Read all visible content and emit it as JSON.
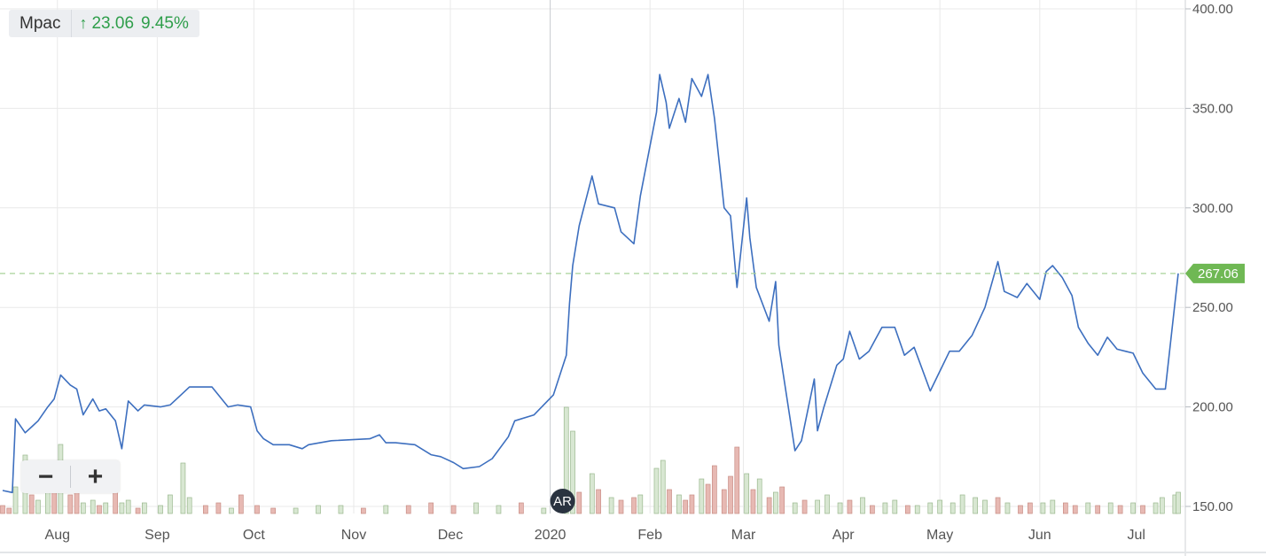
{
  "legend": {
    "name": "Mpac",
    "arrow_icon": "arrow-up-icon",
    "change": "23.06",
    "percent": "9.45%",
    "change_color": "#2e9e4a"
  },
  "zoom": {
    "minus_label": "−",
    "plus_label": "+"
  },
  "current_price": {
    "label": "267.06",
    "value": 267.06,
    "color": "#6fb854"
  },
  "event_marker": {
    "label": "AR",
    "date": "2020-01-01"
  },
  "colors": {
    "line": "#3d6fbf",
    "volume_up": "#d8e7d2",
    "volume_up_stroke": "#9ab88e",
    "volume_down": "#e7b9b3",
    "volume_down_stroke": "#c98e86",
    "grid": "#e9e9e9"
  },
  "chart_data": {
    "type": "line",
    "title": "",
    "xlabel": "",
    "ylabel": "",
    "ylim": [
      145,
      405
    ],
    "yticks": [
      150,
      200,
      250,
      300,
      350,
      400
    ],
    "ytick_labels": [
      "150.00",
      "200.00",
      "250.00",
      "300.00",
      "350.00",
      "400.00"
    ],
    "xticks": [
      {
        "label": "Aug",
        "date": "2019-08-01"
      },
      {
        "label": "Sep",
        "date": "2019-09-01"
      },
      {
        "label": "Oct",
        "date": "2019-10-01"
      },
      {
        "label": "Nov",
        "date": "2019-11-01"
      },
      {
        "label": "Dec",
        "date": "2019-12-01"
      },
      {
        "label": "2020",
        "date": "2020-01-01"
      },
      {
        "label": "Feb",
        "date": "2020-02-01"
      },
      {
        "label": "Mar",
        "date": "2020-03-01"
      },
      {
        "label": "Apr",
        "date": "2020-04-01"
      },
      {
        "label": "May",
        "date": "2020-05-01"
      },
      {
        "label": "Jun",
        "date": "2020-06-01"
      },
      {
        "label": "Jul",
        "date": "2020-07-01"
      }
    ],
    "grid": true,
    "series": [
      {
        "values": [
          [
            "2019-07-15",
            158
          ],
          [
            "2019-07-18",
            157
          ],
          [
            "2019-07-19",
            194
          ],
          [
            "2019-07-22",
            187
          ],
          [
            "2019-07-24",
            190
          ],
          [
            "2019-07-26",
            193
          ],
          [
            "2019-07-29",
            200
          ],
          [
            "2019-07-31",
            204
          ],
          [
            "2019-08-02",
            216
          ],
          [
            "2019-08-05",
            211
          ],
          [
            "2019-08-07",
            209
          ],
          [
            "2019-08-09",
            196
          ],
          [
            "2019-08-12",
            204
          ],
          [
            "2019-08-14",
            198
          ],
          [
            "2019-08-16",
            199
          ],
          [
            "2019-08-19",
            193
          ],
          [
            "2019-08-21",
            179
          ],
          [
            "2019-08-23",
            203
          ],
          [
            "2019-08-26",
            198
          ],
          [
            "2019-08-28",
            201
          ],
          [
            "2019-09-02",
            200
          ],
          [
            "2019-09-05",
            201
          ],
          [
            "2019-09-09",
            207
          ],
          [
            "2019-09-11",
            210
          ],
          [
            "2019-09-18",
            210
          ],
          [
            "2019-09-20",
            206
          ],
          [
            "2019-09-23",
            200
          ],
          [
            "2019-09-26",
            201
          ],
          [
            "2019-09-30",
            200
          ],
          [
            "2019-10-02",
            188
          ],
          [
            "2019-10-04",
            184
          ],
          [
            "2019-10-07",
            181
          ],
          [
            "2019-10-12",
            181
          ],
          [
            "2019-10-16",
            179
          ],
          [
            "2019-10-18",
            181
          ],
          [
            "2019-10-25",
            183
          ],
          [
            "2019-11-06",
            184
          ],
          [
            "2019-11-09",
            186
          ],
          [
            "2019-11-11",
            182
          ],
          [
            "2019-11-14",
            182
          ],
          [
            "2019-11-20",
            181
          ],
          [
            "2019-11-25",
            176
          ],
          [
            "2019-11-28",
            175
          ],
          [
            "2019-12-02",
            172
          ],
          [
            "2019-12-05",
            169
          ],
          [
            "2019-12-10",
            170
          ],
          [
            "2019-12-14",
            174
          ],
          [
            "2019-12-19",
            185
          ],
          [
            "2019-12-21",
            193
          ],
          [
            "2019-12-27",
            196
          ],
          [
            "2020-01-02",
            206
          ],
          [
            "2020-01-06",
            226
          ],
          [
            "2020-01-07",
            252
          ],
          [
            "2020-01-08",
            271
          ],
          [
            "2020-01-10",
            291
          ],
          [
            "2020-01-14",
            316
          ],
          [
            "2020-01-16",
            302
          ],
          [
            "2020-01-21",
            300
          ],
          [
            "2020-01-23",
            288
          ],
          [
            "2020-01-27",
            282
          ],
          [
            "2020-01-29",
            306
          ],
          [
            "2020-02-03",
            348
          ],
          [
            "2020-02-04",
            367
          ],
          [
            "2020-02-06",
            353
          ],
          [
            "2020-02-07",
            340
          ],
          [
            "2020-02-10",
            355
          ],
          [
            "2020-02-12",
            343
          ],
          [
            "2020-02-14",
            365
          ],
          [
            "2020-02-17",
            356
          ],
          [
            "2020-02-19",
            367
          ],
          [
            "2020-02-21",
            345
          ],
          [
            "2020-02-24",
            300
          ],
          [
            "2020-02-26",
            296
          ],
          [
            "2020-02-28",
            260
          ],
          [
            "2020-03-02",
            305
          ],
          [
            "2020-03-03",
            285
          ],
          [
            "2020-03-05",
            260
          ],
          [
            "2020-03-09",
            243
          ],
          [
            "2020-03-11",
            263
          ],
          [
            "2020-03-12",
            231
          ],
          [
            "2020-03-17",
            178
          ],
          [
            "2020-03-19",
            183
          ],
          [
            "2020-03-23",
            214
          ],
          [
            "2020-03-24",
            188
          ],
          [
            "2020-03-26",
            200
          ],
          [
            "2020-03-30",
            221
          ],
          [
            "2020-04-01",
            224
          ],
          [
            "2020-04-03",
            238
          ],
          [
            "2020-04-06",
            224
          ],
          [
            "2020-04-09",
            228
          ],
          [
            "2020-04-13",
            240
          ],
          [
            "2020-04-17",
            240
          ],
          [
            "2020-04-20",
            226
          ],
          [
            "2020-04-23",
            230
          ],
          [
            "2020-04-28",
            208
          ],
          [
            "2020-05-01",
            218
          ],
          [
            "2020-05-04",
            228
          ],
          [
            "2020-05-07",
            228
          ],
          [
            "2020-05-11",
            236
          ],
          [
            "2020-05-15",
            250
          ],
          [
            "2020-05-19",
            273
          ],
          [
            "2020-05-21",
            258
          ],
          [
            "2020-05-25",
            255
          ],
          [
            "2020-05-28",
            262
          ],
          [
            "2020-06-01",
            254
          ],
          [
            "2020-06-03",
            268
          ],
          [
            "2020-06-05",
            271
          ],
          [
            "2020-06-08",
            265
          ],
          [
            "2020-06-11",
            256
          ],
          [
            "2020-06-13",
            240
          ],
          [
            "2020-06-16",
            232
          ],
          [
            "2020-06-19",
            226
          ],
          [
            "2020-06-22",
            235
          ],
          [
            "2020-06-25",
            229
          ],
          [
            "2020-06-30",
            227
          ],
          [
            "2020-07-03",
            217
          ],
          [
            "2020-07-07",
            209
          ],
          [
            "2020-07-10",
            209
          ],
          [
            "2020-07-14",
            267.06
          ]
        ]
      }
    ],
    "volume": [
      [
        "2019-07-15",
        3,
        "down"
      ],
      [
        "2019-07-17",
        2,
        "down"
      ],
      [
        "2019-07-19",
        10,
        "up"
      ],
      [
        "2019-07-22",
        22,
        "up"
      ],
      [
        "2019-07-24",
        7,
        "down"
      ],
      [
        "2019-07-26",
        5,
        "up"
      ],
      [
        "2019-07-29",
        9,
        "up"
      ],
      [
        "2019-07-31",
        12,
        "down"
      ],
      [
        "2019-08-02",
        26,
        "up"
      ],
      [
        "2019-08-05",
        7,
        "down"
      ],
      [
        "2019-08-07",
        11,
        "down"
      ],
      [
        "2019-08-09",
        4,
        "up"
      ],
      [
        "2019-08-12",
        5,
        "up"
      ],
      [
        "2019-08-14",
        3,
        "down"
      ],
      [
        "2019-08-16",
        4,
        "up"
      ],
      [
        "2019-08-19",
        10,
        "down"
      ],
      [
        "2019-08-21",
        4,
        "up"
      ],
      [
        "2019-08-23",
        5,
        "up"
      ],
      [
        "2019-08-26",
        2,
        "down"
      ],
      [
        "2019-08-28",
        4,
        "up"
      ],
      [
        "2019-09-02",
        3,
        "up"
      ],
      [
        "2019-09-05",
        7,
        "up"
      ],
      [
        "2019-09-09",
        19,
        "up"
      ],
      [
        "2019-09-11",
        6,
        "up"
      ],
      [
        "2019-09-16",
        3,
        "down"
      ],
      [
        "2019-09-20",
        4,
        "down"
      ],
      [
        "2019-09-24",
        2,
        "up"
      ],
      [
        "2019-09-27",
        7,
        "down"
      ],
      [
        "2019-10-02",
        3,
        "down"
      ],
      [
        "2019-10-07",
        2,
        "down"
      ],
      [
        "2019-10-14",
        2,
        "up"
      ],
      [
        "2019-10-21",
        3,
        "up"
      ],
      [
        "2019-10-28",
        3,
        "up"
      ],
      [
        "2019-11-04",
        2,
        "down"
      ],
      [
        "2019-11-11",
        3,
        "up"
      ],
      [
        "2019-11-18",
        3,
        "down"
      ],
      [
        "2019-11-25",
        4,
        "down"
      ],
      [
        "2019-12-02",
        3,
        "down"
      ],
      [
        "2019-12-09",
        4,
        "up"
      ],
      [
        "2019-12-16",
        3,
        "up"
      ],
      [
        "2019-12-23",
        4,
        "down"
      ],
      [
        "2019-12-30",
        2,
        "up"
      ],
      [
        "2020-01-06",
        40,
        "up"
      ],
      [
        "2020-01-08",
        31,
        "up"
      ],
      [
        "2020-01-10",
        8,
        "down"
      ],
      [
        "2020-01-14",
        15,
        "up"
      ],
      [
        "2020-01-16",
        9,
        "down"
      ],
      [
        "2020-01-20",
        6,
        "up"
      ],
      [
        "2020-01-23",
        5,
        "down"
      ],
      [
        "2020-01-27",
        6,
        "down"
      ],
      [
        "2020-01-29",
        7,
        "up"
      ],
      [
        "2020-02-03",
        17,
        "up"
      ],
      [
        "2020-02-05",
        20,
        "up"
      ],
      [
        "2020-02-07",
        9,
        "down"
      ],
      [
        "2020-02-10",
        7,
        "up"
      ],
      [
        "2020-02-12",
        5,
        "down"
      ],
      [
        "2020-02-14",
        7,
        "down"
      ],
      [
        "2020-02-17",
        13,
        "up"
      ],
      [
        "2020-02-19",
        11,
        "down"
      ],
      [
        "2020-02-21",
        18,
        "down"
      ],
      [
        "2020-02-24",
        9,
        "down"
      ],
      [
        "2020-02-26",
        14,
        "down"
      ],
      [
        "2020-02-28",
        25,
        "down"
      ],
      [
        "2020-03-02",
        15,
        "up"
      ],
      [
        "2020-03-04",
        9,
        "down"
      ],
      [
        "2020-03-06",
        13,
        "up"
      ],
      [
        "2020-03-09",
        6,
        "down"
      ],
      [
        "2020-03-11",
        8,
        "up"
      ],
      [
        "2020-03-13",
        10,
        "down"
      ],
      [
        "2020-03-17",
        4,
        "up"
      ],
      [
        "2020-03-20",
        5,
        "down"
      ],
      [
        "2020-03-24",
        5,
        "up"
      ],
      [
        "2020-03-27",
        7,
        "up"
      ],
      [
        "2020-03-31",
        4,
        "up"
      ],
      [
        "2020-04-03",
        5,
        "down"
      ],
      [
        "2020-04-07",
        6,
        "up"
      ],
      [
        "2020-04-10",
        3,
        "down"
      ],
      [
        "2020-04-14",
        4,
        "up"
      ],
      [
        "2020-04-17",
        5,
        "up"
      ],
      [
        "2020-04-21",
        3,
        "down"
      ],
      [
        "2020-04-24",
        3,
        "up"
      ],
      [
        "2020-04-28",
        4,
        "up"
      ],
      [
        "2020-05-01",
        5,
        "up"
      ],
      [
        "2020-05-05",
        4,
        "up"
      ],
      [
        "2020-05-08",
        7,
        "up"
      ],
      [
        "2020-05-12",
        6,
        "up"
      ],
      [
        "2020-05-15",
        5,
        "up"
      ],
      [
        "2020-05-19",
        6,
        "down"
      ],
      [
        "2020-05-22",
        4,
        "up"
      ],
      [
        "2020-05-26",
        3,
        "down"
      ],
      [
        "2020-05-29",
        4,
        "down"
      ],
      [
        "2020-06-02",
        4,
        "up"
      ],
      [
        "2020-06-05",
        5,
        "up"
      ],
      [
        "2020-06-09",
        4,
        "down"
      ],
      [
        "2020-06-12",
        3,
        "down"
      ],
      [
        "2020-06-16",
        4,
        "up"
      ],
      [
        "2020-06-19",
        3,
        "down"
      ],
      [
        "2020-06-23",
        4,
        "up"
      ],
      [
        "2020-06-26",
        3,
        "down"
      ],
      [
        "2020-06-30",
        4,
        "up"
      ],
      [
        "2020-07-03",
        3,
        "down"
      ],
      [
        "2020-07-07",
        4,
        "up"
      ],
      [
        "2020-07-09",
        6,
        "up"
      ],
      [
        "2020-07-13",
        7,
        "up"
      ],
      [
        "2020-07-14",
        8,
        "up"
      ]
    ]
  }
}
